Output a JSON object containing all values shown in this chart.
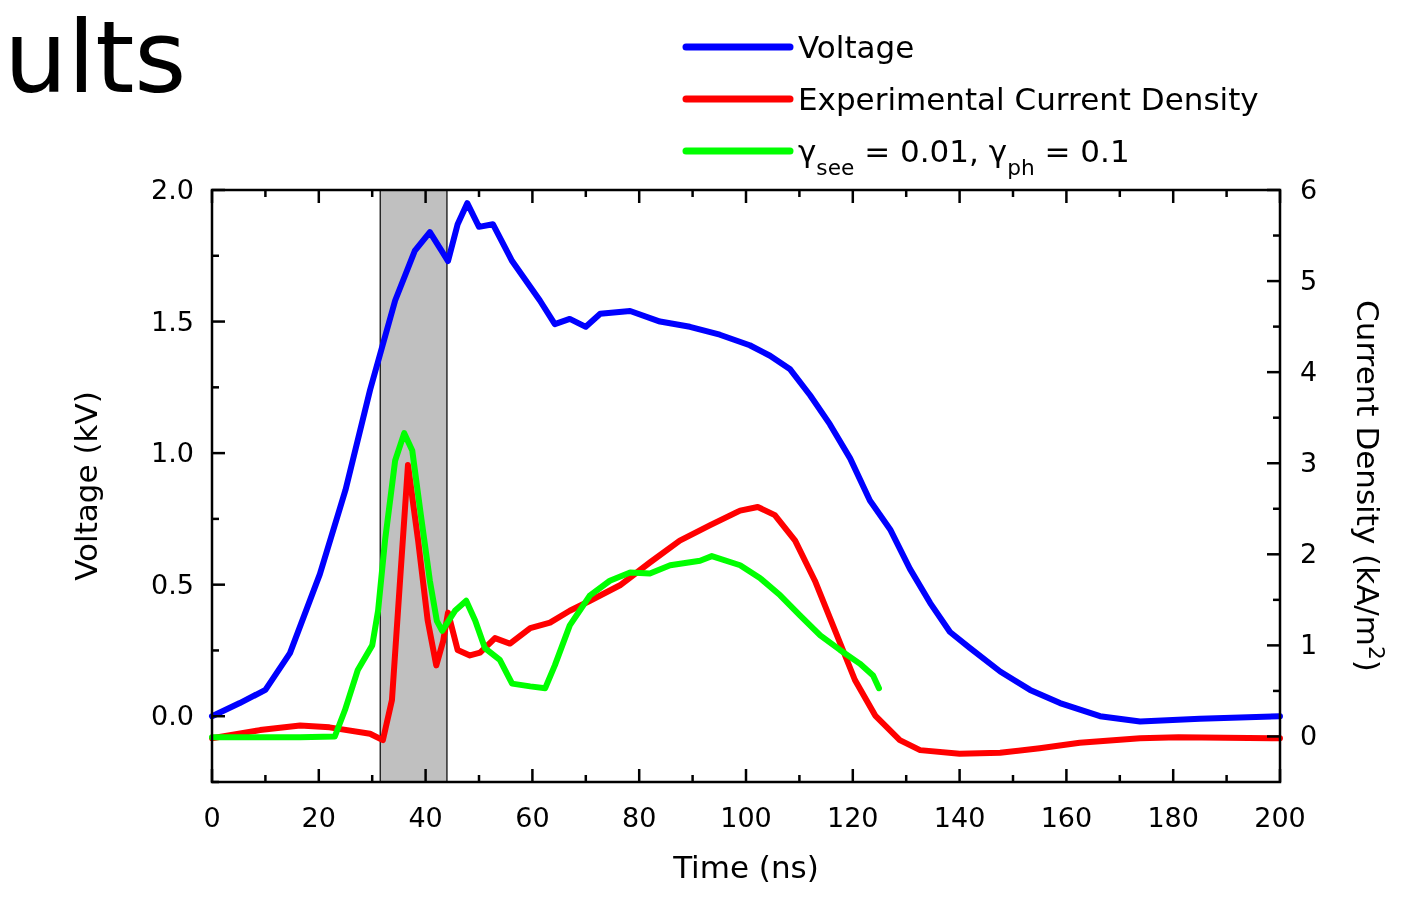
{
  "chart_data": {
    "type": "line",
    "xlabel": "Time (ns)",
    "ylabel": "Voltage (kV)",
    "y2label": "Current Density (kA/m$^{2}$)",
    "annotations": [
      "ults"
    ],
    "xlim": [
      0,
      200
    ],
    "xticks": [
      0,
      {
        "value": 10,
        "label": null
      },
      20,
      {
        "value": 30,
        "label": null
      },
      40,
      {
        "value": 50,
        "label": null
      },
      60,
      {
        "value": 70,
        "label": null
      },
      80,
      {
        "value": 90,
        "label": null
      },
      100,
      {
        "value": 110,
        "label": null
      },
      120,
      {
        "value": 130,
        "label": null
      },
      140,
      {
        "value": 150,
        "label": null
      },
      160,
      {
        "value": 170,
        "label": null
      },
      180,
      {
        "value": 190,
        "label": null
      },
      200
    ],
    "ylim": [
      -0.25,
      2.0
    ],
    "yticks": [
      {
        "value": -0.25,
        "label": null
      },
      {
        "value": 0,
        "label": "0.0"
      },
      {
        "value": 0.25,
        "label": null
      },
      0.5,
      {
        "value": 0.75,
        "label": null
      },
      {
        "value": 1,
        "label": "1.0"
      },
      {
        "value": 1.25,
        "label": null
      },
      1.5,
      {
        "value": 1.75,
        "label": null
      },
      {
        "value": 2,
        "label": "2.0"
      }
    ],
    "y2lim": [
      -0.5,
      6
    ],
    "y2ticks": [
      0,
      {
        "value": 0.5,
        "label": null
      },
      1,
      {
        "value": 1.5,
        "label": null
      },
      2,
      {
        "value": 2.5,
        "label": null
      },
      3,
      {
        "value": 3.5,
        "label": null
      },
      4,
      {
        "value": 4.5,
        "label": null
      },
      5,
      {
        "value": 5.5,
        "label": null
      },
      6
    ],
    "grid": false,
    "legend": "top right",
    "line_style": "solid",
    "marker": "none",
    "bands": [
      {
        "axis": "x",
        "from": 31.5,
        "to": 44,
        "color": "#c0c0c0"
      }
    ],
    "series": [
      {
        "name": "Voltage",
        "color": "#0000ff",
        "x": [
          0,
          5.2,
          10,
          14.6,
          20.2,
          25,
          29.6,
          34.3,
          38,
          40.8,
          44.2,
          46,
          47.8,
          50,
          52.6,
          56.2,
          61.4,
          64.2,
          67,
          70,
          72.7,
          78.3,
          83.9,
          89.5,
          95.1,
          100.7,
          104.5,
          108.2,
          112,
          115.7,
          119.5,
          123.2,
          127,
          130.7,
          134.5,
          138.2,
          141.9,
          147.6,
          153.2,
          158.8,
          166.3,
          173.8,
          185,
          200
        ],
        "values": [
          0.0,
          0.05,
          0.1,
          0.24,
          0.54,
          0.86,
          1.24,
          1.58,
          1.77,
          1.84,
          1.73,
          1.87,
          1.95,
          1.86,
          1.87,
          1.73,
          1.58,
          1.49,
          1.51,
          1.48,
          1.53,
          1.54,
          1.5,
          1.48,
          1.45,
          1.41,
          1.37,
          1.32,
          1.22,
          1.11,
          0.98,
          0.82,
          0.71,
          0.56,
          0.43,
          0.32,
          0.26,
          0.17,
          0.1,
          0.05,
          0.0,
          -0.02,
          -0.01,
          0.0
        ]
      },
      {
        "name": "Experimental Current Density",
        "color": "#ff0000",
        "axis": "y2",
        "x": [
          0,
          9,
          16.5,
          22,
          29.6,
          32,
          33.7,
          35.2,
          36.7,
          38.6,
          40.4,
          42,
          43.3,
          44.2,
          46,
          48.3,
          50.2,
          53,
          55.8,
          59.6,
          63.3,
          67,
          70.8,
          76.4,
          82,
          87.6,
          93.3,
          98.9,
          102.2,
          105.4,
          109.2,
          112.9,
          116.7,
          120.4,
          124.2,
          128.8,
          132.6,
          140,
          147.6,
          155,
          162.5,
          173.8,
          181,
          200
        ],
        "values": [
          -0.02,
          0.07,
          0.12,
          0.1,
          0.03,
          -0.04,
          0.4,
          1.7,
          2.98,
          2.15,
          1.27,
          0.78,
          1.05,
          1.36,
          0.95,
          0.89,
          0.92,
          1.08,
          1.02,
          1.19,
          1.25,
          1.38,
          1.49,
          1.66,
          1.91,
          2.15,
          2.32,
          2.48,
          2.52,
          2.43,
          2.15,
          1.71,
          1.16,
          0.62,
          0.23,
          -0.04,
          -0.15,
          -0.19,
          -0.18,
          -0.13,
          -0.07,
          -0.02,
          -0.01,
          -0.02
        ]
      },
      {
        "name": "γ$_{see}$ = 0.01, γ$_{ph}$ = 0.1",
        "color": "#00ff00",
        "axis": "y2",
        "x": [
          0,
          16.5,
          23,
          24.9,
          27.3,
          30,
          31.1,
          32.4,
          34.3,
          36,
          37.5,
          39,
          40.8,
          42.1,
          43.1,
          45.5,
          47.6,
          49.3,
          51.1,
          53.9,
          56.2,
          59.6,
          62.4,
          64.2,
          67,
          70.8,
          74.5,
          78.3,
          82,
          85.8,
          91.4,
          93.6,
          98.9,
          102.6,
          106.4,
          110.1,
          113.9,
          117.6,
          121.3,
          123.8,
          124.9
        ],
        "values": [
          -0.01,
          -0.01,
          0,
          0.29,
          0.73,
          1.0,
          1.38,
          2.15,
          3.03,
          3.33,
          3.14,
          2.48,
          1.71,
          1.27,
          1.16,
          1.38,
          1.49,
          1.27,
          0.97,
          0.84,
          0.58,
          0.55,
          0.53,
          0.78,
          1.22,
          1.55,
          1.71,
          1.8,
          1.79,
          1.88,
          1.93,
          1.98,
          1.88,
          1.74,
          1.55,
          1.33,
          1.11,
          0.95,
          0.8,
          0.67,
          0.53
        ]
      }
    ]
  }
}
